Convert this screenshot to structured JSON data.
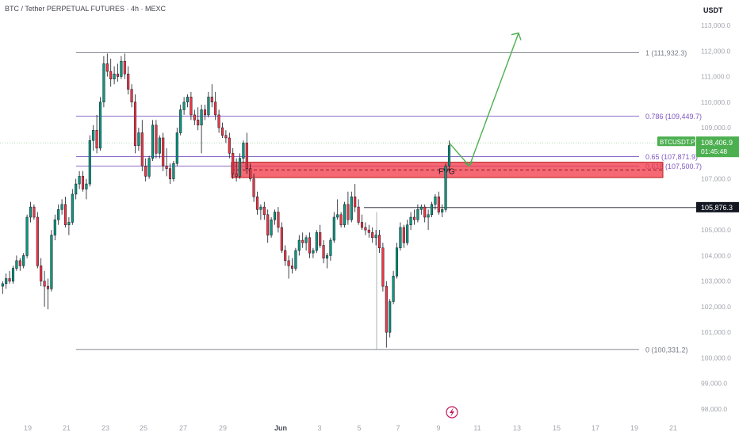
{
  "header": {
    "title": "BTC / Tether PERPETUAL FUTURES · 4h · MEXC",
    "currency": "USDT"
  },
  "colors": {
    "up": "#089981",
    "down": "#f23645",
    "fib_grey": "#787b86",
    "fib_purple": "#7e57c2",
    "fvg": "#f23645",
    "arrow": "#4caf50",
    "price_tag": "#4caf50",
    "level_tag": "#131722"
  },
  "chart_data": {
    "type": "candlestick",
    "symbol": "BTCUSDT.P",
    "timeframe": "4h",
    "ylim": [
      97700,
      113600
    ],
    "x_ticks": [
      "19",
      "21",
      "23",
      "25",
      "27",
      "29",
      "Jun",
      "3",
      "5",
      "7",
      "9",
      "11",
      "13",
      "15",
      "17",
      "19",
      "21"
    ],
    "y_ticks": [
      98000,
      99000,
      100000,
      101000,
      102000,
      103000,
      104000,
      105000,
      106000,
      107000,
      108000,
      109000,
      110000,
      111000,
      112000,
      113000
    ],
    "y_tick_labels": [
      "98,000.0",
      "99,000.0",
      "100,000.0",
      "101,000.0",
      "102,000.0",
      "103,000.0",
      "104,000.0",
      "105,000.0",
      "106,000.0",
      "107,000.0",
      "108,000.0",
      "109,000.0",
      "110,000.0",
      "111,000.0",
      "112,000.0",
      "113,000.0"
    ],
    "candles": [
      [
        102800,
        103000,
        102500,
        102900
      ],
      [
        102900,
        103300,
        102700,
        103100
      ],
      [
        103100,
        103400,
        102900,
        103000
      ],
      [
        103000,
        103600,
        102900,
        103500
      ],
      [
        103500,
        104000,
        103400,
        103800
      ],
      [
        103800,
        103900,
        103400,
        103600
      ],
      [
        103600,
        104100,
        103500,
        104000
      ],
      [
        104000,
        105600,
        103900,
        105500
      ],
      [
        105500,
        106100,
        105300,
        105900
      ],
      [
        105900,
        106000,
        105400,
        105500
      ],
      [
        105500,
        105700,
        103500,
        103600
      ],
      [
        103600,
        103900,
        102800,
        103000
      ],
      [
        103000,
        103400,
        102000,
        102800
      ],
      [
        102800,
        103100,
        101900,
        102700
      ],
      [
        102700,
        105000,
        102600,
        104800
      ],
      [
        104800,
        105600,
        104600,
        105400
      ],
      [
        105400,
        106000,
        105200,
        105800
      ],
      [
        105800,
        106200,
        105600,
        106000
      ],
      [
        106000,
        106300,
        105100,
        105200
      ],
      [
        105200,
        105500,
        104800,
        105300
      ],
      [
        105300,
        106600,
        105200,
        106400
      ],
      [
        106400,
        107000,
        106200,
        106800
      ],
      [
        106800,
        107300,
        106600,
        107100
      ],
      [
        107100,
        107300,
        106500,
        106600
      ],
      [
        106600,
        107000,
        106200,
        106800
      ],
      [
        106800,
        108700,
        106700,
        108500
      ],
      [
        108500,
        109100,
        108100,
        108900
      ],
      [
        108900,
        109500,
        108000,
        108200
      ],
      [
        108200,
        110200,
        108100,
        110000
      ],
      [
        110000,
        111800,
        109800,
        111500
      ],
      [
        111500,
        111900,
        111000,
        111200
      ],
      [
        111200,
        111700,
        110600,
        110900
      ],
      [
        110900,
        111400,
        110700,
        111100
      ],
      [
        111100,
        111500,
        110800,
        111000
      ],
      [
        111000,
        111800,
        110900,
        111600
      ],
      [
        111600,
        111900,
        110900,
        111100
      ],
      [
        111100,
        111400,
        110300,
        110500
      ],
      [
        110500,
        110700,
        109800,
        110000
      ],
      [
        110000,
        110300,
        108000,
        108300
      ],
      [
        108300,
        109000,
        108100,
        108800
      ],
      [
        108800,
        109300,
        107300,
        107500
      ],
      [
        107500,
        107800,
        106900,
        107100
      ],
      [
        107100,
        107900,
        107000,
        107800
      ],
      [
        107800,
        109300,
        107700,
        109100
      ],
      [
        109100,
        109300,
        107800,
        108000
      ],
      [
        108000,
        108700,
        107800,
        108600
      ],
      [
        108600,
        108800,
        107300,
        107500
      ],
      [
        107500,
        108200,
        107100,
        107400
      ],
      [
        107400,
        107600,
        106800,
        107000
      ],
      [
        107000,
        107700,
        106900,
        107600
      ],
      [
        107600,
        109000,
        107500,
        108800
      ],
      [
        108800,
        109900,
        108700,
        109700
      ],
      [
        109700,
        110200,
        109500,
        110000
      ],
      [
        110000,
        110300,
        109800,
        110200
      ],
      [
        110200,
        110400,
        109300,
        109500
      ],
      [
        109500,
        109700,
        109100,
        109300
      ],
      [
        109300,
        109800,
        108900,
        109100
      ],
      [
        109100,
        109900,
        108000,
        109700
      ],
      [
        109700,
        109900,
        109300,
        109500
      ],
      [
        109500,
        110400,
        109400,
        110200
      ],
      [
        110200,
        110700,
        109800,
        110000
      ],
      [
        110000,
        110400,
        109300,
        109500
      ],
      [
        109500,
        109700,
        108800,
        109000
      ],
      [
        109000,
        109200,
        108600,
        108700
      ],
      [
        108700,
        108900,
        108400,
        108600
      ],
      [
        108600,
        108800,
        107800,
        108000
      ],
      [
        108000,
        108200,
        107000,
        107200
      ],
      [
        107200,
        107800,
        106900,
        107100
      ],
      [
        107100,
        108000,
        107000,
        107800
      ],
      [
        107800,
        108500,
        107600,
        108400
      ],
      [
        108400,
        108800,
        107200,
        107400
      ],
      [
        107400,
        107600,
        106900,
        107000
      ],
      [
        107000,
        107200,
        106100,
        106300
      ],
      [
        106300,
        106500,
        105600,
        105800
      ],
      [
        105800,
        106000,
        105400,
        105900
      ],
      [
        105900,
        106100,
        105400,
        105600
      ],
      [
        105600,
        105800,
        104500,
        104800
      ],
      [
        104800,
        105500,
        104700,
        105400
      ],
      [
        105400,
        105800,
        105200,
        105700
      ],
      [
        105700,
        105900,
        104900,
        105100
      ],
      [
        105100,
        105300,
        104100,
        104200
      ],
      [
        104200,
        104400,
        103600,
        103800
      ],
      [
        103800,
        104000,
        103100,
        103600
      ],
      [
        103600,
        103900,
        103300,
        103500
      ],
      [
        103500,
        104300,
        103400,
        104200
      ],
      [
        104200,
        104800,
        104000,
        104600
      ],
      [
        104600,
        104900,
        104300,
        104500
      ],
      [
        104500,
        104800,
        104200,
        104700
      ],
      [
        104700,
        104900,
        103900,
        104100
      ],
      [
        104100,
        104300,
        103900,
        104200
      ],
      [
        104200,
        105000,
        104100,
        104900
      ],
      [
        104900,
        105200,
        104300,
        104400
      ],
      [
        104400,
        104600,
        103700,
        103900
      ],
      [
        103900,
        104100,
        103500,
        104000
      ],
      [
        104000,
        104700,
        103800,
        104600
      ],
      [
        104600,
        105700,
        104500,
        105500
      ],
      [
        105500,
        106200,
        105400,
        105600
      ],
      [
        105600,
        105700,
        105100,
        105200
      ],
      [
        105200,
        106100,
        105100,
        106000
      ],
      [
        106000,
        106500,
        105200,
        105400
      ],
      [
        105400,
        106500,
        105300,
        106300
      ],
      [
        106300,
        106800,
        105700,
        105900
      ],
      [
        105900,
        106200,
        105200,
        105300
      ],
      [
        105300,
        105600,
        105000,
        105100
      ],
      [
        105100,
        105300,
        104800,
        105000
      ],
      [
        105000,
        105200,
        104700,
        104900
      ],
      [
        104900,
        105100,
        104500,
        104700
      ],
      [
        104700,
        105000,
        104400,
        104800
      ],
      [
        104800,
        105000,
        104100,
        104300
      ],
      [
        104300,
        104500,
        102600,
        102800
      ],
      [
        102800,
        103000,
        100400,
        101000
      ],
      [
        101000,
        102300,
        100800,
        102200
      ],
      [
        102200,
        103400,
        102100,
        103200
      ],
      [
        103200,
        104500,
        103100,
        104300
      ],
      [
        104300,
        105300,
        104200,
        105100
      ],
      [
        105100,
        105200,
        104300,
        104500
      ],
      [
        104500,
        105400,
        104400,
        105200
      ],
      [
        105200,
        105700,
        105000,
        105500
      ],
      [
        105500,
        105800,
        105200,
        105400
      ],
      [
        105400,
        106000,
        105300,
        105800
      ],
      [
        105800,
        106000,
        105600,
        105900
      ],
      [
        105900,
        106000,
        105300,
        105500
      ],
      [
        105500,
        105800,
        105000,
        105600
      ],
      [
        105600,
        106100,
        105500,
        106000
      ],
      [
        106000,
        106400,
        105800,
        106300
      ],
      [
        106300,
        106500,
        105600,
        105700
      ],
      [
        105700,
        106000,
        105500,
        105800
      ],
      [
        105800,
        107600,
        105700,
        107500
      ],
      [
        107500,
        108500,
        107300,
        108300
      ]
    ],
    "fib_levels": [
      {
        "ratio": 1,
        "price": 111932.3,
        "label": "1 (111,932.3)",
        "color": "grey"
      },
      {
        "ratio": 0.786,
        "price": 109449.7,
        "label": "0.786 (109,449.7)",
        "color": "purple"
      },
      {
        "ratio": 0.65,
        "price": 107871.9,
        "label": "0.65 (107,871.9)",
        "color": "purple"
      },
      {
        "ratio": 0.618,
        "price": 107500.7,
        "label": "0.618 (107,500.7)",
        "color": "purple"
      },
      {
        "ratio": 0,
        "price": 100331.2,
        "label": "0 (100,331.2)",
        "color": "grey"
      }
    ],
    "fvg": {
      "label": "FVG",
      "top": 107650,
      "bottom": 107050,
      "mid": 107350
    },
    "support_level": {
      "price": 105876.3,
      "label": "105,876.3"
    },
    "current_price": {
      "price": 108406.9,
      "label": "108,406.9",
      "symbol": "BTCUSDT.P",
      "countdown": "01:45:48"
    },
    "projection_path": [
      108406.9,
      107500,
      112700
    ]
  }
}
